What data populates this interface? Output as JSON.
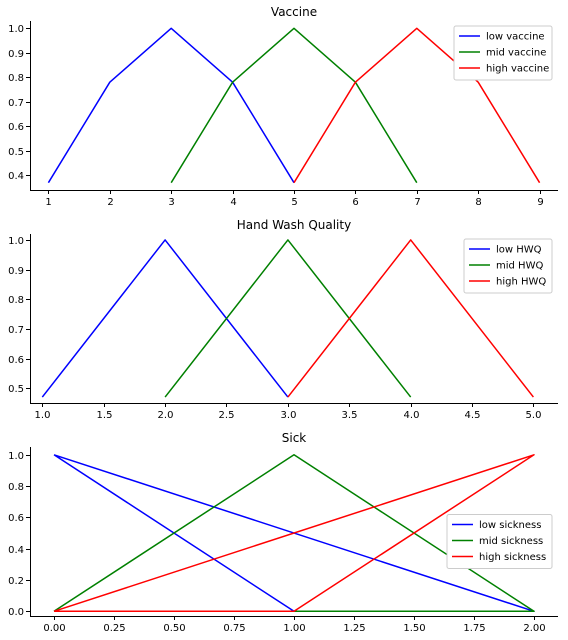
{
  "chart_data": [
    {
      "type": "line",
      "title": "Vaccine",
      "xlim": [
        0.7,
        9.3
      ],
      "ylim": [
        0.34,
        1.03
      ],
      "xticks": [
        1,
        2,
        3,
        4,
        5,
        6,
        7,
        8,
        9
      ],
      "xtick_labels": [
        "1",
        "2",
        "3",
        "4",
        "5",
        "6",
        "7",
        "8",
        "9"
      ],
      "yticks": [
        0.4,
        0.5,
        0.6,
        0.7,
        0.8,
        0.9,
        1.0
      ],
      "ytick_labels": [
        "0.4",
        "0.5",
        "0.6",
        "0.7",
        "0.8",
        "0.9",
        "1.0"
      ],
      "legend_position": "top-right",
      "series": [
        {
          "name": "low vaccine",
          "color": "#0000ff",
          "x": [
            1,
            2,
            3,
            4,
            5
          ],
          "y": [
            0.37,
            0.78,
            1.0,
            0.78,
            0.37
          ]
        },
        {
          "name": "mid vaccine",
          "color": "#008000",
          "x": [
            3,
            4,
            5,
            6,
            7
          ],
          "y": [
            0.37,
            0.78,
            1.0,
            0.78,
            0.37
          ]
        },
        {
          "name": "high vaccine",
          "color": "#ff0000",
          "x": [
            5,
            6,
            7,
            8,
            9
          ],
          "y": [
            0.37,
            0.78,
            1.0,
            0.78,
            0.37
          ]
        }
      ]
    },
    {
      "type": "line",
      "title": "Hand Wash Quality",
      "xlim": [
        0.9,
        5.2
      ],
      "ylim": [
        0.45,
        1.02
      ],
      "xticks": [
        1.0,
        1.5,
        2.0,
        2.5,
        3.0,
        3.5,
        4.0,
        4.5,
        5.0
      ],
      "xtick_labels": [
        "1.0",
        "1.5",
        "2.0",
        "2.5",
        "3.0",
        "3.5",
        "4.0",
        "4.5",
        "5.0"
      ],
      "yticks": [
        0.5,
        0.6,
        0.7,
        0.8,
        0.9,
        1.0
      ],
      "ytick_labels": [
        "0.5",
        "0.6",
        "0.7",
        "0.8",
        "0.9",
        "1.0"
      ],
      "legend_position": "top-right",
      "series": [
        {
          "name": "low HWQ",
          "color": "#0000ff",
          "x": [
            1,
            2,
            3
          ],
          "y": [
            0.47,
            1.0,
            0.47
          ]
        },
        {
          "name": "mid HWQ",
          "color": "#008000",
          "x": [
            2,
            3,
            4
          ],
          "y": [
            0.47,
            1.0,
            0.47
          ]
        },
        {
          "name": "high HWQ",
          "color": "#ff0000",
          "x": [
            3,
            4,
            5
          ],
          "y": [
            0.47,
            1.0,
            0.47
          ]
        }
      ]
    },
    {
      "type": "line",
      "title": "Sick",
      "xlim": [
        -0.1,
        2.1
      ],
      "ylim": [
        -0.03,
        1.05
      ],
      "xticks": [
        0.0,
        0.25,
        0.5,
        0.75,
        1.0,
        1.25,
        1.5,
        1.75,
        2.0
      ],
      "xtick_labels": [
        "0.00",
        "0.25",
        "0.50",
        "0.75",
        "1.00",
        "1.25",
        "1.50",
        "1.75",
        "2.00"
      ],
      "yticks": [
        0.0,
        0.2,
        0.4,
        0.6,
        0.8,
        1.0
      ],
      "ytick_labels": [
        "0.0",
        "0.2",
        "0.4",
        "0.6",
        "0.8",
        "1.0"
      ],
      "legend_position": "center-right",
      "series": [
        {
          "name": "low sickness",
          "color": "#0000ff",
          "x": [
            0,
            1,
            2,
            0
          ],
          "y": [
            1.0,
            0.0,
            0.0,
            1.0
          ]
        },
        {
          "name": "mid sickness",
          "color": "#008000",
          "x": [
            0,
            1,
            2,
            0
          ],
          "y": [
            0.0,
            1.0,
            0.0,
            0.0
          ]
        },
        {
          "name": "high sickness",
          "color": "#ff0000",
          "x": [
            0,
            1,
            2,
            0
          ],
          "y": [
            0.0,
            0.0,
            1.0,
            0.0
          ]
        }
      ]
    }
  ]
}
